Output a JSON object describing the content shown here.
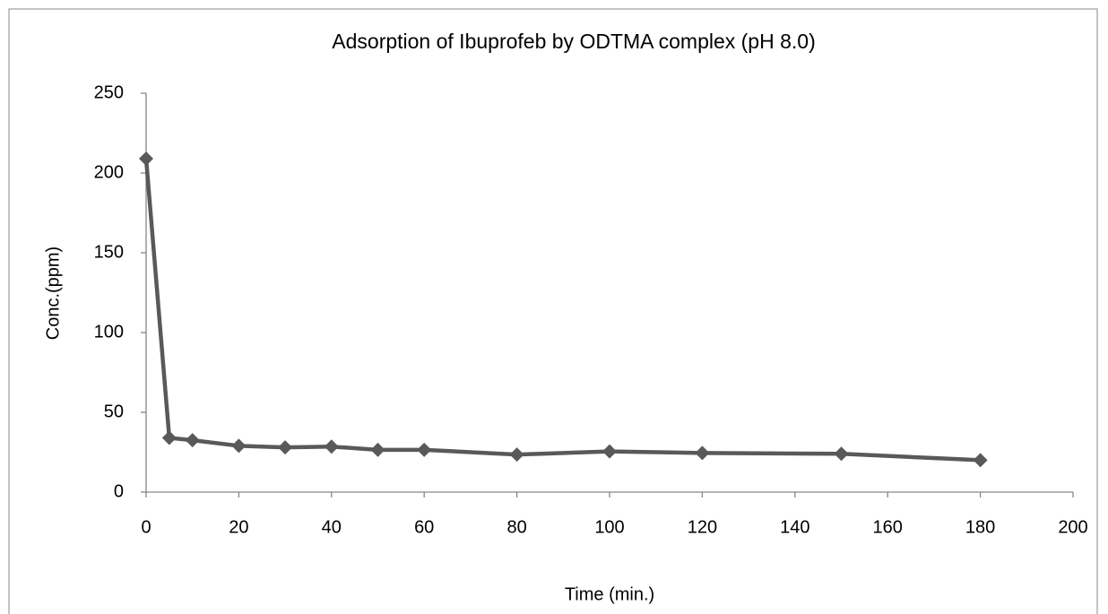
{
  "chart_data": {
    "type": "line",
    "title": "Adsorption of Ibuprofeb by ODTMA complex (pH 8.0)",
    "x_label": "Time (min.)",
    "y_label": "Conc.(ppm)",
    "x": [
      0,
      5,
      10,
      20,
      30,
      40,
      50,
      60,
      80,
      100,
      120,
      150,
      180
    ],
    "series": [
      {
        "name": "Conc.",
        "color": "#595959",
        "values": [
          209,
          34,
          32.5,
          29,
          28,
          28.5,
          26.5,
          26.5,
          23.5,
          25.5,
          24.5,
          24,
          20
        ]
      }
    ],
    "xlim": [
      0,
      200
    ],
    "xticks": [
      0,
      20,
      40,
      60,
      80,
      100,
      120,
      140,
      160,
      180,
      200
    ],
    "ylim": [
      0,
      250
    ],
    "yticks": [
      0,
      50,
      100,
      150,
      200,
      250
    ],
    "grid": false
  }
}
